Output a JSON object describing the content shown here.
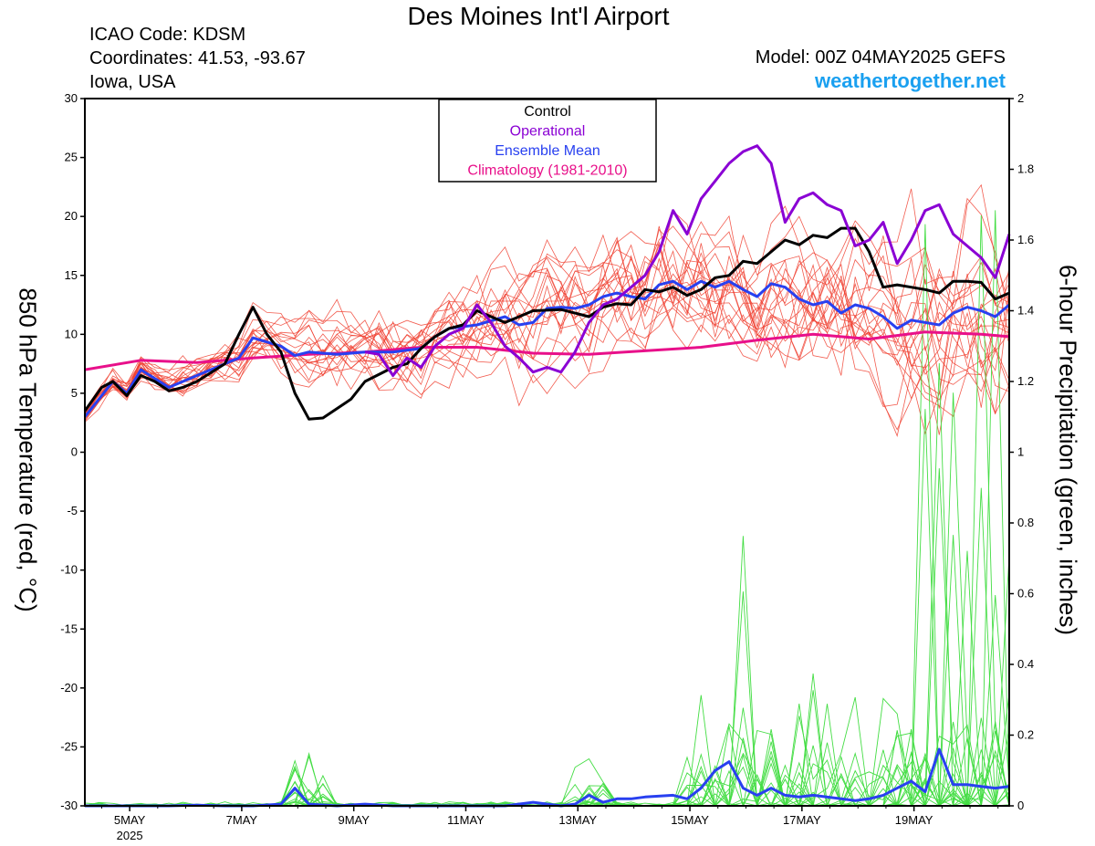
{
  "header": {
    "title": "Des Moines Int'l Airport",
    "icao": "ICAO Code: KDSM",
    "coords": "Coordinates: 41.53, -93.67",
    "region": "Iowa, USA",
    "model": "Model: 00Z 04MAY2025 GEFS",
    "site": "weathertogether.net"
  },
  "colors": {
    "members": "#f04030",
    "precip": "#44dd44",
    "control": "#000000",
    "operational": "#8a00d4",
    "mean": "#2840f0",
    "climo": "#e8108a",
    "site": "#1aa0f0"
  },
  "chart_data": {
    "type": "line",
    "title": "Des Moines Int'l Airport",
    "ylabel": "850 hPa Temperature (red, °C)",
    "y2label": "6-hour Precipitation (green, inches)",
    "ylim": [
      -30,
      30
    ],
    "y2lim": [
      0,
      2
    ],
    "yticks": [
      30,
      25,
      20,
      15,
      10,
      5,
      0,
      -5,
      -10,
      -15,
      -20,
      -25,
      -30
    ],
    "y2ticks": [
      "2",
      "1.8",
      "1.6",
      "1.4",
      "1.2",
      "1",
      "0.8",
      "0.6",
      "0.4",
      "0.2",
      "0"
    ],
    "xlim": [
      0,
      16.5
    ],
    "xticks": [
      {
        "x": 0.8,
        "label": "5MAY",
        "sub": "2025"
      },
      {
        "x": 2.8,
        "label": "7MAY",
        "sub": ""
      },
      {
        "x": 4.8,
        "label": "9MAY",
        "sub": ""
      },
      {
        "x": 6.8,
        "label": "11MAY",
        "sub": ""
      },
      {
        "x": 8.8,
        "label": "13MAY",
        "sub": ""
      },
      {
        "x": 10.8,
        "label": "15MAY",
        "sub": ""
      },
      {
        "x": 12.8,
        "label": "17MAY",
        "sub": ""
      },
      {
        "x": 14.8,
        "label": "19MAY",
        "sub": ""
      }
    ],
    "legend": [
      "Control",
      "Operational",
      "Ensemble Mean",
      "Climatology (1981-2010)"
    ],
    "legend_position": "top-center",
    "series": [
      {
        "name": "Control",
        "axis": "left",
        "points": [
          [
            0,
            3.5
          ],
          [
            0.3,
            5.5
          ],
          [
            0.5,
            6
          ],
          [
            0.75,
            4.8
          ],
          [
            1,
            6.5
          ],
          [
            1.25,
            6
          ],
          [
            1.5,
            5.2
          ],
          [
            1.75,
            5.5
          ],
          [
            2,
            6
          ],
          [
            2.5,
            7.5
          ],
          [
            2.75,
            10
          ],
          [
            3,
            12.3
          ],
          [
            3.25,
            10
          ],
          [
            3.5,
            8.5
          ],
          [
            3.75,
            5
          ],
          [
            4,
            2.8
          ],
          [
            4.25,
            2.9
          ],
          [
            4.75,
            4.5
          ],
          [
            5,
            6
          ],
          [
            5.5,
            7.2
          ],
          [
            5.75,
            7.5
          ],
          [
            6,
            8.8
          ],
          [
            6.25,
            9.8
          ],
          [
            6.5,
            10.5
          ],
          [
            6.75,
            10.8
          ],
          [
            7,
            12
          ],
          [
            7.25,
            11.5
          ],
          [
            7.5,
            11
          ],
          [
            7.75,
            11.5
          ],
          [
            8,
            12
          ],
          [
            8.5,
            12.1
          ],
          [
            8.75,
            11.8
          ],
          [
            9,
            11.5
          ],
          [
            9.25,
            12.3
          ],
          [
            9.5,
            12.6
          ],
          [
            9.75,
            12.5
          ],
          [
            10,
            13.8
          ],
          [
            10.25,
            13.6
          ],
          [
            10.5,
            14
          ],
          [
            10.75,
            13.3
          ],
          [
            11,
            13.8
          ],
          [
            11.25,
            14.8
          ],
          [
            11.5,
            15
          ],
          [
            11.75,
            16.2
          ],
          [
            12,
            16
          ],
          [
            12.25,
            17
          ],
          [
            12.5,
            18
          ],
          [
            12.75,
            17.6
          ],
          [
            13,
            18.4
          ],
          [
            13.25,
            18.2
          ],
          [
            13.5,
            19
          ],
          [
            13.75,
            19
          ],
          [
            14,
            17
          ],
          [
            14.25,
            14
          ],
          [
            14.5,
            14.2
          ],
          [
            14.75,
            14
          ],
          [
            15,
            13.8
          ],
          [
            15.25,
            13.5
          ],
          [
            15.5,
            14.5
          ],
          [
            15.75,
            14.5
          ],
          [
            16,
            14.4
          ],
          [
            16.25,
            13
          ],
          [
            16.5,
            13.5
          ]
        ]
      },
      {
        "name": "Operational",
        "axis": "left",
        "points": [
          [
            5,
            8.5
          ],
          [
            5.25,
            8.3
          ],
          [
            5.5,
            6.5
          ],
          [
            5.75,
            8
          ],
          [
            6,
            7.2
          ],
          [
            6.25,
            9
          ],
          [
            6.5,
            10
          ],
          [
            6.75,
            10.5
          ],
          [
            7,
            12.5
          ],
          [
            7.25,
            11
          ],
          [
            7.5,
            9
          ],
          [
            7.75,
            8
          ],
          [
            8,
            6.8
          ],
          [
            8.25,
            7.2
          ],
          [
            8.5,
            6.8
          ],
          [
            8.75,
            8.5
          ],
          [
            9,
            11
          ],
          [
            9.25,
            12.5
          ],
          [
            9.5,
            13
          ],
          [
            9.75,
            14
          ],
          [
            10,
            15
          ],
          [
            10.25,
            17
          ],
          [
            10.5,
            20.5
          ],
          [
            10.75,
            18.5
          ],
          [
            11,
            21.5
          ],
          [
            11.25,
            23
          ],
          [
            11.5,
            24.5
          ],
          [
            11.75,
            25.5
          ],
          [
            12,
            26
          ],
          [
            12.25,
            24.5
          ],
          [
            12.5,
            19.5
          ],
          [
            12.75,
            21.5
          ],
          [
            13,
            22
          ],
          [
            13.25,
            21
          ],
          [
            13.5,
            20.5
          ],
          [
            13.75,
            17.5
          ],
          [
            14,
            18
          ],
          [
            14.25,
            19.5
          ],
          [
            14.5,
            16
          ],
          [
            14.75,
            18
          ],
          [
            15,
            20.5
          ],
          [
            15.25,
            21
          ],
          [
            15.5,
            18.5
          ],
          [
            15.75,
            17.5
          ],
          [
            16,
            16.5
          ],
          [
            16.25,
            14.8
          ],
          [
            16.5,
            18.5
          ]
        ]
      },
      {
        "name": "Ensemble Mean",
        "axis": "left",
        "points": [
          [
            0,
            3
          ],
          [
            0.5,
            6
          ],
          [
            0.75,
            5
          ],
          [
            1,
            7
          ],
          [
            1.5,
            5.5
          ],
          [
            2,
            6.5
          ],
          [
            2.5,
            7.5
          ],
          [
            2.75,
            8
          ],
          [
            3,
            9.7
          ],
          [
            3.5,
            9
          ],
          [
            3.75,
            8.2
          ],
          [
            4,
            8.5
          ],
          [
            4.5,
            8.3
          ],
          [
            5,
            8.5
          ],
          [
            5.5,
            8.5
          ],
          [
            6,
            8.8
          ],
          [
            6.25,
            9.8
          ],
          [
            6.5,
            10.5
          ],
          [
            7,
            10.8
          ],
          [
            7.5,
            11.5
          ],
          [
            7.75,
            10.8
          ],
          [
            8,
            11
          ],
          [
            8.25,
            12.2
          ],
          [
            8.5,
            12.3
          ],
          [
            8.75,
            12.2
          ],
          [
            9,
            12.5
          ],
          [
            9.25,
            13.2
          ],
          [
            9.5,
            13.5
          ],
          [
            9.75,
            13.2
          ],
          [
            10,
            13
          ],
          [
            10.25,
            14.2
          ],
          [
            10.5,
            14.5
          ],
          [
            10.75,
            13.8
          ],
          [
            11,
            14.5
          ],
          [
            11.25,
            14
          ],
          [
            11.5,
            14.5
          ],
          [
            11.75,
            13.8
          ],
          [
            12,
            13.2
          ],
          [
            12.25,
            14.3
          ],
          [
            12.5,
            14
          ],
          [
            12.75,
            13
          ],
          [
            13,
            12.5
          ],
          [
            13.25,
            12.8
          ],
          [
            13.5,
            11.8
          ],
          [
            13.75,
            12.5
          ],
          [
            14,
            12.2
          ],
          [
            14.25,
            11.5
          ],
          [
            14.5,
            10.5
          ],
          [
            14.75,
            11.2
          ],
          [
            15,
            11
          ],
          [
            15.25,
            10.8
          ],
          [
            15.5,
            11.8
          ],
          [
            15.75,
            12.3
          ],
          [
            16,
            12
          ],
          [
            16.25,
            11.5
          ],
          [
            16.5,
            12.5
          ]
        ]
      },
      {
        "name": "Climatology (1981-2010)",
        "axis": "left",
        "points": [
          [
            0,
            7
          ],
          [
            1,
            7.8
          ],
          [
            2,
            7.6
          ],
          [
            3,
            8
          ],
          [
            4,
            8.3
          ],
          [
            5,
            8.5
          ],
          [
            6,
            8.9
          ],
          [
            7,
            8.9
          ],
          [
            8,
            8.4
          ],
          [
            9,
            8.3
          ],
          [
            10,
            8.6
          ],
          [
            11,
            8.9
          ],
          [
            12,
            9.5
          ],
          [
            13,
            10
          ],
          [
            14,
            9.6
          ],
          [
            15,
            10.2
          ],
          [
            16,
            10
          ],
          [
            16.5,
            9.8
          ]
        ]
      },
      {
        "name": "Ensemble Mean 6-hour Precipitation",
        "axis": "right",
        "points": [
          [
            0,
            0
          ],
          [
            1,
            0
          ],
          [
            1.5,
            0
          ],
          [
            2,
            0.002
          ],
          [
            2.5,
            0
          ],
          [
            3,
            0
          ],
          [
            3.5,
            0.005
          ],
          [
            3.75,
            0.05
          ],
          [
            4,
            0.005
          ],
          [
            4.5,
            0
          ],
          [
            5,
            0.005
          ],
          [
            5.5,
            0
          ],
          [
            6,
            0
          ],
          [
            7,
            0
          ],
          [
            7.5,
            0
          ],
          [
            8,
            0.01
          ],
          [
            8.5,
            0
          ],
          [
            8.75,
            0.005
          ],
          [
            9,
            0.03
          ],
          [
            9.25,
            0.01
          ],
          [
            9.5,
            0.02
          ],
          [
            9.75,
            0.02
          ],
          [
            10,
            0.025
          ],
          [
            10.5,
            0.03
          ],
          [
            10.75,
            0.02
          ],
          [
            11,
            0.05
          ],
          [
            11.25,
            0.1
          ],
          [
            11.5,
            0.125
          ],
          [
            11.75,
            0.05
          ],
          [
            12,
            0.03
          ],
          [
            12.25,
            0.05
          ],
          [
            12.5,
            0.03
          ],
          [
            12.75,
            0.025
          ],
          [
            13,
            0.03
          ],
          [
            13.5,
            0.02
          ],
          [
            13.75,
            0.015
          ],
          [
            14,
            0.02
          ],
          [
            14.25,
            0.03
          ],
          [
            14.5,
            0.05
          ],
          [
            14.75,
            0.07
          ],
          [
            15,
            0.04
          ],
          [
            15.25,
            0.16
          ],
          [
            15.5,
            0.06
          ],
          [
            15.75,
            0.06
          ],
          [
            16,
            0.055
          ],
          [
            16.25,
            0.05
          ],
          [
            16.5,
            0.055
          ]
        ]
      }
    ],
    "ensemble_members_temperature_range": {
      "axis": "left",
      "min": 2,
      "max": 23,
      "count": 20
    },
    "ensemble_members_precip_max": {
      "axis": "right",
      "max": 2.0,
      "count": 20
    }
  }
}
